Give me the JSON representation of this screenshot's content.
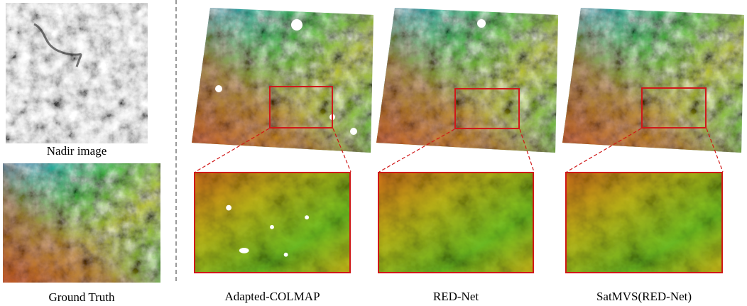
{
  "captions": {
    "nadir": "Nadir image",
    "ground_truth": "Ground Truth",
    "method_1": "Adapted-COLMAP",
    "method_2": "RED-Net",
    "method_3": "SatMVS(RED-Net)"
  },
  "colors": {
    "highlight": "#d01818",
    "separator": "#9a9a9a",
    "elevation_low": "#2a6fd6",
    "elevation_mid_low": "#1fb8a0",
    "elevation_mid": "#35b82a",
    "elevation_mid_high": "#b8c21a",
    "elevation_high": "#d0561a",
    "nodata": "#ffffff"
  }
}
